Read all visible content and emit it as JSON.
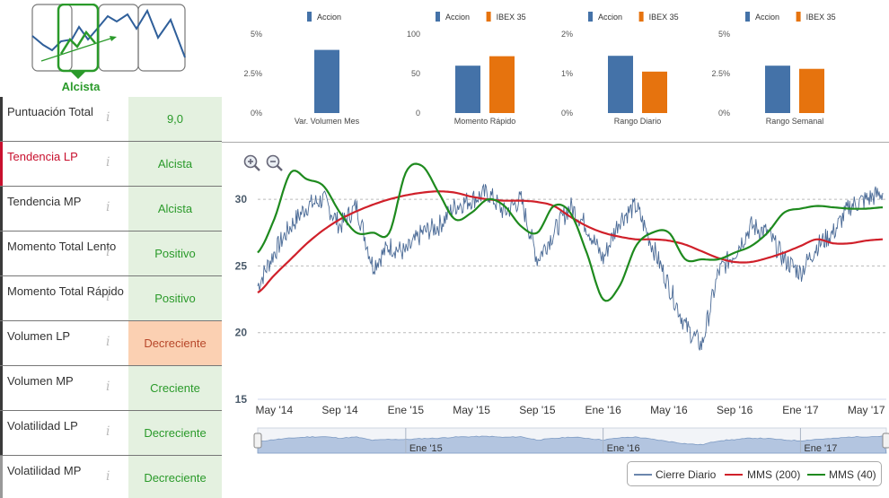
{
  "trend_widget": {
    "label": "Alcista",
    "colors": {
      "active_frame": "#2a9a2a",
      "frame": "#666666",
      "line": "#2f5f9a"
    }
  },
  "indicators": [
    {
      "name": "Puntuación Total",
      "value": "9,0",
      "state": "normal"
    },
    {
      "name": "Tendencia LP",
      "value": "Alcista",
      "state": "active"
    },
    {
      "name": "Tendencia MP",
      "value": "Alcista",
      "state": "normal"
    },
    {
      "name": "Momento Total Lento",
      "value": "Positivo",
      "state": "normal"
    },
    {
      "name": "Momento Total Rápido",
      "value": "Positivo",
      "state": "normal"
    },
    {
      "name": "Volumen LP",
      "value": "Decreciente",
      "state": "warn"
    },
    {
      "name": "Volumen MP",
      "value": "Creciente",
      "state": "normal"
    },
    {
      "name": "Volatilidad LP",
      "value": "Decreciente",
      "state": "normal"
    },
    {
      "name": "Volatilidad MP",
      "value": "Decreciente",
      "state": "dim"
    }
  ],
  "info_glyph": "i",
  "chart_data": [
    {
      "type": "bar",
      "title": "Var. Volumen Mes",
      "legend": [
        "Accion"
      ],
      "categories": [
        "Var. Volumen Mes"
      ],
      "series": [
        {
          "name": "Accion",
          "values": [
            4.0
          ]
        }
      ],
      "ylim": [
        0,
        5
      ],
      "yticks": [
        "0%",
        "2.5%",
        "5%"
      ]
    },
    {
      "type": "bar",
      "title": "Momento Rápido",
      "legend": [
        "Accion",
        "IBEX 35"
      ],
      "categories": [
        "Momento Rápido"
      ],
      "series": [
        {
          "name": "Accion",
          "values": [
            60
          ]
        },
        {
          "name": "IBEX 35",
          "values": [
            72
          ]
        }
      ],
      "ylim": [
        0,
        100
      ],
      "yticks": [
        "0",
        "50",
        "100"
      ]
    },
    {
      "type": "bar",
      "title": "Rango Diario",
      "legend": [
        "Accion",
        "IBEX 35"
      ],
      "categories": [
        "Rango Diario"
      ],
      "series": [
        {
          "name": "Accion",
          "values": [
            1.45
          ]
        },
        {
          "name": "IBEX 35",
          "values": [
            1.05
          ]
        }
      ],
      "ylim": [
        0,
        2
      ],
      "yticks": [
        "0%",
        "1%",
        "2%"
      ]
    },
    {
      "type": "bar",
      "title": "Rango Semanal",
      "legend": [
        "Accion",
        "IBEX 35"
      ],
      "categories": [
        "Rango Semanal"
      ],
      "series": [
        {
          "name": "Accion",
          "values": [
            3.0
          ]
        },
        {
          "name": "IBEX 35",
          "values": [
            2.8
          ]
        }
      ],
      "ylim": [
        0,
        5
      ],
      "yticks": [
        "0%",
        "2.5%",
        "5%"
      ]
    },
    {
      "type": "line",
      "title": "",
      "x_ticks": [
        "May '14",
        "Sep '14",
        "Ene '15",
        "May '15",
        "Sep '15",
        "Ene '16",
        "May '16",
        "Sep '16",
        "Ene '17",
        "May '17"
      ],
      "navigator_ticks": [
        "Ene '15",
        "Ene '16",
        "Ene '17"
      ],
      "ylim": [
        15,
        32.5
      ],
      "yticks": [
        15,
        20,
        25,
        30
      ],
      "x_months": [
        0,
        1,
        2,
        3,
        4,
        5,
        6,
        7,
        8,
        9,
        10,
        11,
        12,
        13,
        14,
        15,
        16,
        17,
        18,
        19,
        20,
        21,
        22,
        23,
        24,
        25,
        26,
        27,
        28,
        29,
        30,
        31,
        32,
        33,
        34,
        35,
        36,
        37,
        38
      ],
      "series": [
        {
          "name": "Cierre Diario",
          "color": "#4a6a96",
          "values": [
            23.5,
            26.0,
            28.0,
            29.5,
            30.0,
            28.0,
            29.5,
            25.0,
            26.5,
            26.0,
            27.5,
            28.0,
            29.5,
            30.0,
            30.5,
            29.0,
            30.0,
            25.5,
            27.5,
            29.5,
            28.0,
            25.5,
            28.5,
            29.5,
            26.5,
            23.5,
            20.5,
            19.0,
            24.5,
            26.0,
            28.0,
            27.5,
            25.5,
            24.5,
            26.5,
            27.5,
            29.5,
            30.0,
            30.5
          ]
        },
        {
          "name": "MMS (200)",
          "color": "#d0202a",
          "values": [
            23.0,
            24.3,
            25.5,
            26.7,
            27.7,
            28.5,
            29.1,
            29.6,
            30.0,
            30.3,
            30.5,
            30.6,
            30.5,
            30.2,
            30.0,
            29.9,
            29.9,
            29.8,
            29.5,
            28.7,
            28.0,
            27.5,
            27.2,
            27.0,
            27.0,
            26.9,
            26.6,
            26.1,
            25.6,
            25.3,
            25.3,
            25.6,
            26.0,
            26.5,
            27.0,
            26.7,
            26.7,
            26.9,
            27.0
          ]
        },
        {
          "name": "MMS (40)",
          "color": "#1e8a1e",
          "values": [
            26.0,
            28.5,
            32.0,
            31.5,
            31.0,
            29.0,
            27.5,
            27.5,
            27.5,
            32.0,
            32.5,
            30.5,
            28.5,
            29.0,
            30.0,
            29.5,
            28.0,
            27.5,
            29.5,
            29.0,
            26.0,
            22.5,
            23.5,
            26.5,
            27.5,
            27.5,
            25.5,
            25.5,
            25.5,
            26.0,
            26.5,
            27.5,
            29.0,
            29.3,
            29.5,
            29.4,
            29.3,
            29.3,
            29.4
          ]
        }
      ]
    }
  ],
  "legend_labels": [
    "Cierre Diario",
    "MMS (200)",
    "MMS (40)"
  ],
  "colors": {
    "accion": "#4472a8",
    "ibex": "#e6730e",
    "accent_green": "#2a9a2a"
  }
}
